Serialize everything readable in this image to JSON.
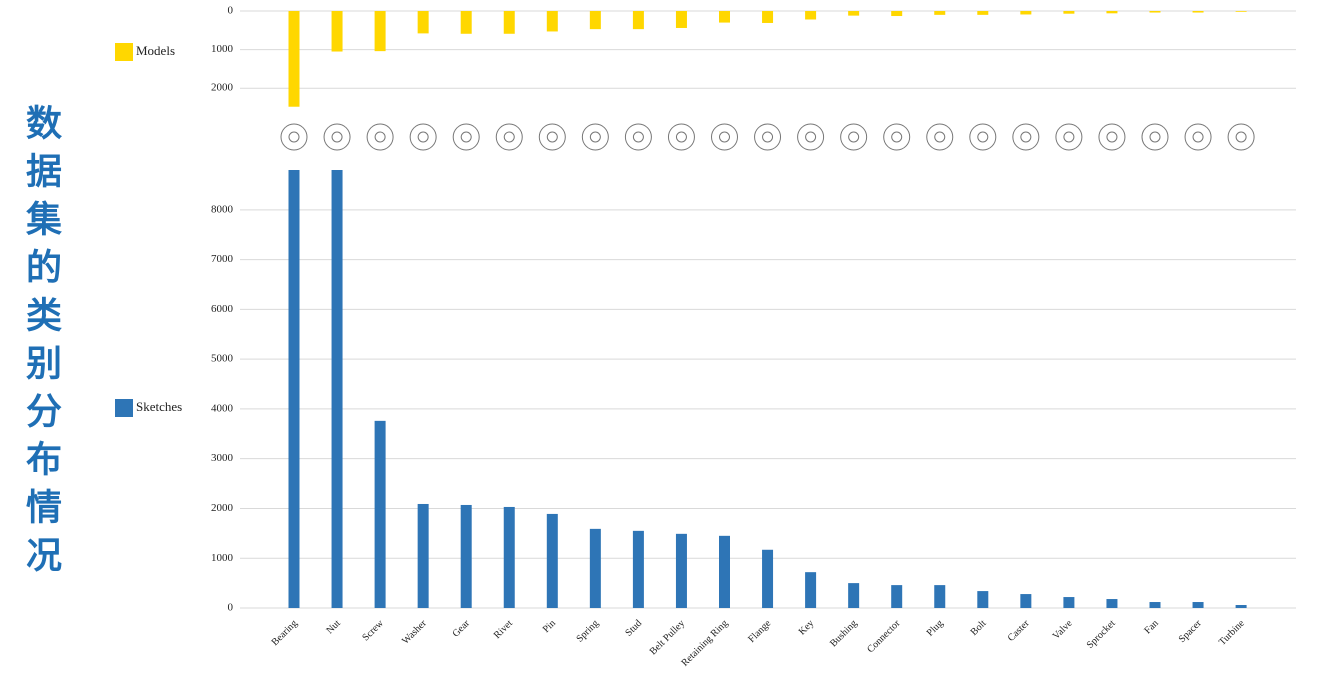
{
  "chart_data": {
    "type": "bar",
    "title": "数据集的类别分布情况",
    "categories": [
      "Bearing",
      "Nut",
      "Screw",
      "Washer",
      "Gear",
      "Rivet",
      "Pin",
      "Spring",
      "Stud",
      "Belt Pulley",
      "Retaining Ring",
      "Flange",
      "Key",
      "Bushing",
      "Connector",
      "Plug",
      "Bolt",
      "Caster",
      "Valve",
      "Sprocket",
      "Fan",
      "Spacer",
      "Turbine"
    ],
    "series": [
      {
        "name": "Models",
        "color": "#FFD700",
        "axis": "y2",
        "values": [
          2480,
          1050,
          1040,
          580,
          590,
          590,
          530,
          470,
          470,
          440,
          300,
          310,
          220,
          120,
          130,
          100,
          100,
          90,
          70,
          60,
          40,
          40,
          20
        ]
      },
      {
        "name": "Sketches",
        "color": "#2E75B6",
        "values": [
          8800,
          8800,
          3760,
          2090,
          2070,
          2030,
          1890,
          1590,
          1550,
          1490,
          1450,
          1170,
          720,
          500,
          460,
          460,
          340,
          280,
          220,
          180,
          120,
          120,
          60
        ]
      }
    ],
    "ylim": [
      0,
      8800
    ],
    "yticks": [
      0,
      1000,
      2000,
      3000,
      4000,
      5000,
      6000,
      7000,
      8000
    ],
    "y2lim": [
      0,
      2500
    ],
    "y2ticks": [
      0,
      1000,
      2000
    ],
    "y2_reversed": true,
    "grid": true
  }
}
